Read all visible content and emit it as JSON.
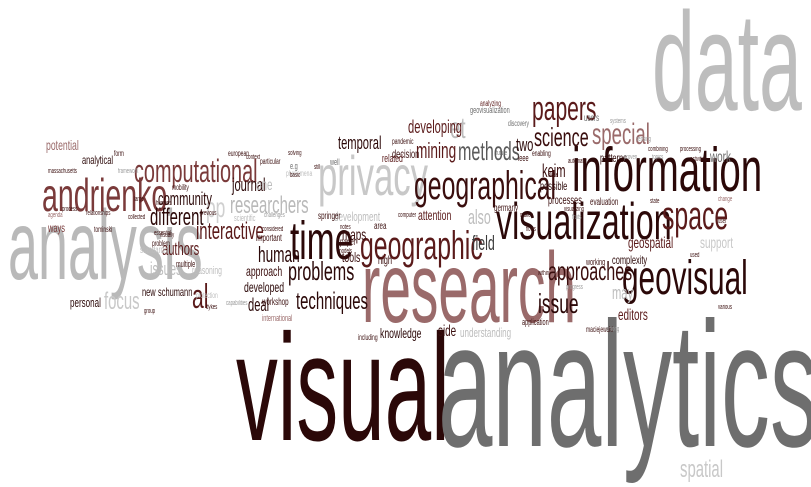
{
  "colors": {
    "dark": "#2a0a0a",
    "maroon": "#5a1a1a",
    "brown": "#7a3a3a",
    "rose": "#9a6a6a",
    "gray": "#6e6e6e",
    "light": "#b9b9b9",
    "pale": "#d2d2d2"
  },
  "words": {
    "data": "data",
    "visual": "visual",
    "analytics": "analytics",
    "analysis": "analysis",
    "research": "research",
    "information": "information",
    "visualization": "visualization",
    "privacy": "privacy",
    "geographical": "geographical",
    "geographic": "geographic",
    "geovisual": "geovisual",
    "time": "time",
    "andrienko": "andrienko",
    "computational": "computational",
    "papers": "papers",
    "science": "science",
    "special": "special",
    "space": "space",
    "methods": "methods",
    "approaches": "approaches",
    "problems": "problems",
    "techniques": "techniques",
    "issue": "issue",
    "issues": "issues",
    "interactive": "interactive",
    "researchers": "researchers",
    "different": "different",
    "human": "human",
    "community": "community",
    "journal": "journal",
    "developing": "developing",
    "mining": "mining",
    "et": "et",
    "al": "al",
    "pp": "pp",
    "field": "field",
    "also": "also",
    "keim": "keim",
    "two": "two",
    "temporal": "temporal",
    "geospatial": "geospatial",
    "support": "support",
    "editors": "editors",
    "may": "may",
    "focus": "focus",
    "spatial": "spatial",
    "knowledge": "knowledge",
    "side": "side",
    "understanding": "understanding",
    "deal": "deal",
    "developed": "developed",
    "authors": "authors",
    "approach": "approach",
    "maps": "maps",
    "tools": "tools",
    "attention": "attention",
    "work": "work",
    "potential": "potential",
    "analytical": "analytical",
    "personal": "personal",
    "new": "new",
    "schumann": "schumann",
    "development": "development",
    "decision": "decision",
    "related": "related",
    "complexity": "complexity",
    "patterns": "patterns",
    "one": "one",
    "possible": "possible",
    "users": "users",
    "high": "high",
    "ways": "ways",
    "reasoning": "reasoning",
    "workshop": "workshop",
    "important": "important",
    "springer": "springer",
    "germany": "germany",
    "processes": "processes",
    "evaluation": "evaluation",
    "application": "application",
    "area": "area",
    "paper": "paper",
    "standards": "standards",
    "scientific": "scientific",
    "international": "international",
    "geovisualization": "geovisualization",
    "analyzing": "analyzing",
    "discovery": "discovery",
    "enabling": "enabling",
    "ieee": "ieee",
    "working": "working",
    "pandemic": "pandemic",
    "multiple": "multiple",
    "visualizing": "visualizing",
    "fruits": "fruits",
    "mobility": "mobility",
    "european": "european",
    "particular": "particular",
    "solving": "solving",
    "protection": "protection",
    "framework": "framework",
    "problem": "problem",
    "eg": "e.g",
    "well": "well",
    "phenomena": "phenomena",
    "tominski": "tominski",
    "including": "including",
    "maciejewski": "maciejewski",
    "progress": "progress",
    "among": "among",
    "various": "various",
    "change": "change",
    "user": "user",
    "processing": "processing",
    "activities": "activities",
    "combining": "combining",
    "systems": "systems",
    "future": "future",
    "sensing": "sensing",
    "state": "state",
    "close": "close",
    "relationships": "relationships",
    "process": "process",
    "agenda": "agenda",
    "group": "group",
    "large": "large",
    "dykes": "dykes",
    "collected": "collected",
    "visually": "visually",
    "essential": "essential",
    "previous": "previous",
    "models": "models",
    "makes": "makes",
    "notes": "notes",
    "still": "still",
    "basic": "basic",
    "considered": "considered",
    "challenges": "challenges",
    "capabilities": "capabilities",
    "form": "form",
    "computer": "computer",
    "within": "within",
    "automatic": "automatic",
    "proven": "proven",
    "massachusetts": "massachusetts",
    "humans": "humans",
    "flows": "flows",
    "used": "used",
    "topics": "topics",
    "context": "context"
  }
}
